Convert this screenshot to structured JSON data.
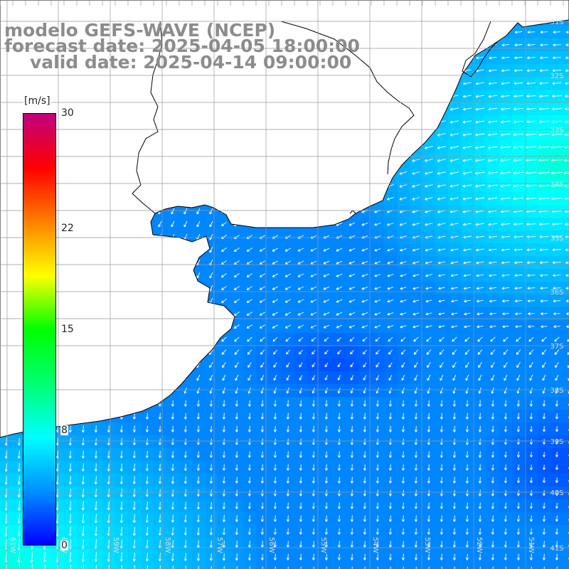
{
  "title": {
    "model": "modelo GEFS-WAVE (NCEP)",
    "forecast": "forecast date: 2025-04-05 18:00:00",
    "valid": "valid date: 2025-04-14 09:00:00"
  },
  "colorbar": {
    "unit": "[m/s]",
    "min": 0,
    "max": 30,
    "ticks": [
      {
        "value": 30,
        "label": "30"
      },
      {
        "value": 22,
        "label": "22"
      },
      {
        "value": 15,
        "label": "15"
      },
      {
        "value": 8,
        "label": "8"
      },
      {
        "value": 0,
        "label": "0"
      }
    ],
    "colors": [
      "#0000ff",
      "#0090ff",
      "#00ffff",
      "#00ff70",
      "#00ff00",
      "#ffff00",
      "#ff8000",
      "#ff0000",
      "#c0007f"
    ]
  },
  "map": {
    "land_color": "#ffffff",
    "grid_color": "#999999",
    "coastline_color": "#000000",
    "arrow_color": "#ffffff",
    "lat_labels": [
      "31S",
      "32S",
      "33S",
      "34S",
      "35S",
      "36S",
      "37S",
      "38S",
      "39S",
      "40S",
      "41S"
    ],
    "lon_labels": [
      "61W",
      "60W",
      "59W",
      "58W",
      "57W",
      "56W",
      "55W",
      "54W",
      "53W",
      "52W",
      "51W"
    ],
    "label_color": "#dddddd"
  }
}
